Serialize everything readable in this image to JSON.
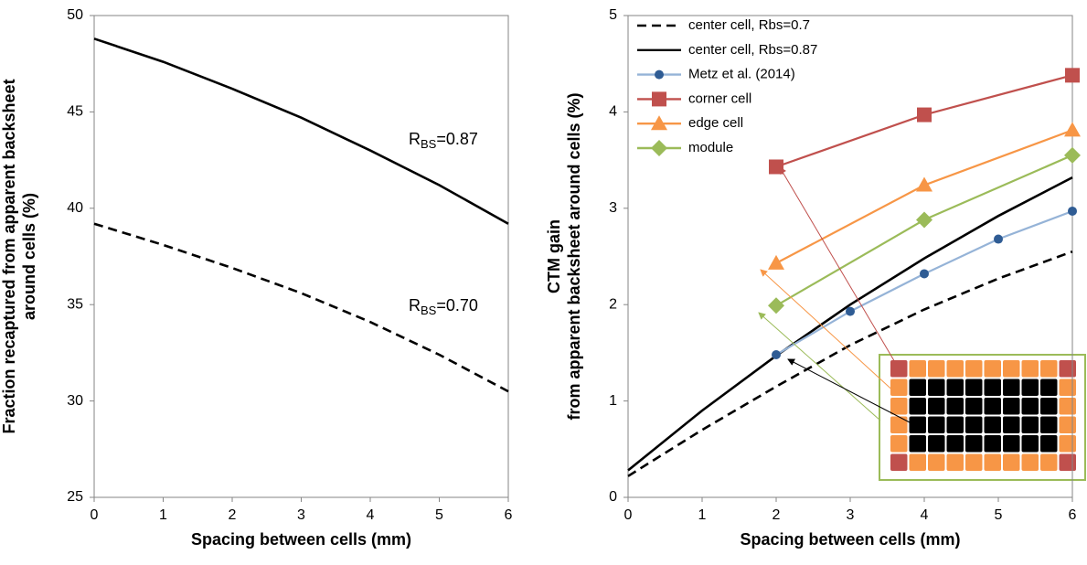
{
  "chart_data": [
    {
      "type": "line",
      "xlabel": "Spacing between cells (mm)",
      "ylabel": [
        "Fraction recaptured from apparent backsheet",
        "around cells (%)"
      ],
      "xlim": [
        0,
        6
      ],
      "xticks": [
        0,
        1,
        2,
        3,
        4,
        5,
        6
      ],
      "ylim": [
        25,
        50
      ],
      "yticks": [
        25,
        30,
        35,
        40,
        45,
        50
      ],
      "grid": false,
      "series": [
        {
          "color": "#000000",
          "line_style": "solid",
          "marker": "none",
          "x": [
            0,
            1,
            2,
            3,
            4,
            5,
            6
          ],
          "values": [
            48.8,
            47.6,
            46.2,
            44.7,
            43.0,
            41.2,
            39.2
          ]
        },
        {
          "color": "#000000",
          "line_style": "dashed",
          "marker": "none",
          "x": [
            0,
            1,
            2,
            3,
            4,
            5,
            6
          ],
          "values": [
            39.2,
            38.1,
            36.9,
            35.6,
            34.1,
            32.4,
            30.5
          ]
        }
      ],
      "annotations": [
        {
          "text": "R",
          "subscript": "BS",
          "suffix": "=0.87"
        },
        {
          "text": "R",
          "subscript": "BS",
          "suffix": "=0.70"
        }
      ]
    },
    {
      "type": "line",
      "xlabel": "Spacing between cells (mm)",
      "ylabel": [
        "CTM gain",
        "from apparent backsheet around cells (%)"
      ],
      "xlim": [
        0,
        6
      ],
      "xticks": [
        0,
        1,
        2,
        3,
        4,
        5,
        6
      ],
      "ylim": [
        0,
        5
      ],
      "yticks": [
        0,
        1,
        2,
        3,
        4,
        5
      ],
      "grid": false,
      "legend": "top-left",
      "series": [
        {
          "name": "center cell, Rbs=0.7",
          "color": "#000000",
          "line_style": "dashed",
          "marker": "none",
          "x": [
            0,
            1,
            2,
            3,
            4,
            5,
            6
          ],
          "values": [
            0.22,
            0.7,
            1.15,
            1.58,
            1.95,
            2.27,
            2.55
          ]
        },
        {
          "name": "center cell, Rbs=0.87",
          "color": "#000000",
          "line_style": "solid",
          "marker": "none",
          "x": [
            0,
            1,
            2,
            3,
            4,
            5,
            6
          ],
          "values": [
            0.28,
            0.9,
            1.47,
            2.0,
            2.48,
            2.92,
            3.32
          ]
        },
        {
          "name": "Metz et al. (2014)",
          "color": "#95b3d7",
          "marker_color": "#2f5c94",
          "line_style": "solid",
          "marker": "circle",
          "x": [
            2,
            3,
            4,
            5,
            6
          ],
          "values": [
            1.48,
            1.93,
            2.32,
            2.68,
            2.97
          ]
        },
        {
          "name": "corner cell",
          "color": "#c0504d",
          "line_style": "solid",
          "marker": "square",
          "x": [
            2,
            4,
            6
          ],
          "values": [
            3.43,
            3.97,
            4.38
          ]
        },
        {
          "name": "edge cell",
          "color": "#f79646",
          "line_style": "solid",
          "marker": "triangle",
          "x": [
            2,
            4,
            6
          ],
          "values": [
            2.43,
            3.24,
            3.81
          ]
        },
        {
          "name": "module",
          "color": "#9bbb59",
          "line_style": "solid",
          "marker": "diamond",
          "x": [
            2,
            4,
            6
          ],
          "values": [
            1.99,
            2.88,
            3.55
          ]
        }
      ]
    }
  ]
}
